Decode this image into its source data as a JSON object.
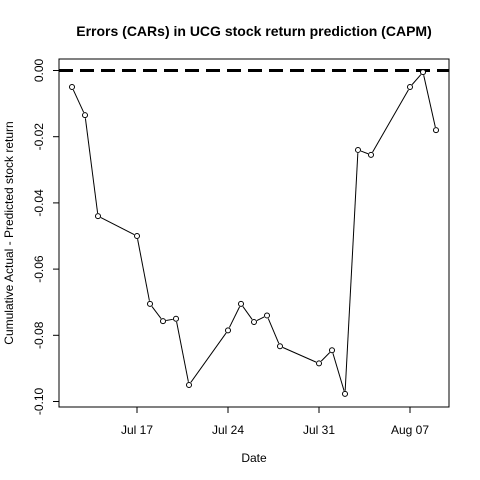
{
  "chart_data": {
    "type": "line",
    "title": "Errors (CARs) in UCG stock return prediction (CAPM)",
    "xlabel": "Date",
    "ylabel": "Cumulative Actual - Predicted stock return",
    "ylim": [
      -0.1,
      0.0
    ],
    "xlim": [
      "2023-07-11",
      "2023-08-10"
    ],
    "grid": false,
    "plot_style": "line-with-open-circles",
    "x_ticks": [
      {
        "date": "2023-07-17",
        "label": "Jul 17"
      },
      {
        "date": "2023-07-24",
        "label": "Jul 24"
      },
      {
        "date": "2023-07-31",
        "label": "Jul 31"
      },
      {
        "date": "2023-08-07",
        "label": "Aug 07"
      }
    ],
    "y_ticks": [
      {
        "value": 0.0,
        "label": "0.00"
      },
      {
        "value": -0.02,
        "label": "-0.02"
      },
      {
        "value": -0.04,
        "label": "-0.04"
      },
      {
        "value": -0.06,
        "label": "-0.06"
      },
      {
        "value": -0.08,
        "label": "-0.08"
      },
      {
        "value": -0.1,
        "label": "-0.10"
      }
    ],
    "reference_line": {
      "y": 0.0,
      "style": "dashed",
      "color": "#000000"
    },
    "series": [
      {
        "color": "#000000",
        "points": [
          {
            "x": "2023-07-12",
            "y": -0.005
          },
          {
            "x": "2023-07-13",
            "y": -0.0135
          },
          {
            "x": "2023-07-14",
            "y": -0.044
          },
          {
            "x": "2023-07-17",
            "y": -0.05
          },
          {
            "x": "2023-07-18",
            "y": -0.0705
          },
          {
            "x": "2023-07-19",
            "y": -0.0757
          },
          {
            "x": "2023-07-20",
            "y": -0.075
          },
          {
            "x": "2023-07-21",
            "y": -0.095
          },
          {
            "x": "2023-07-24",
            "y": -0.0785
          },
          {
            "x": "2023-07-25",
            "y": -0.0705
          },
          {
            "x": "2023-07-26",
            "y": -0.076
          },
          {
            "x": "2023-07-27",
            "y": -0.074
          },
          {
            "x": "2023-07-28",
            "y": -0.0833
          },
          {
            "x": "2023-07-31",
            "y": -0.0885
          },
          {
            "x": "2023-08-01",
            "y": -0.0845
          },
          {
            "x": "2023-08-02",
            "y": -0.0977
          },
          {
            "x": "2023-08-03",
            "y": -0.024
          },
          {
            "x": "2023-08-04",
            "y": -0.0255
          },
          {
            "x": "2023-08-07",
            "y": -0.005
          },
          {
            "x": "2023-08-08",
            "y": -0.0005
          },
          {
            "x": "2023-08-09",
            "y": -0.018
          }
        ]
      }
    ]
  }
}
